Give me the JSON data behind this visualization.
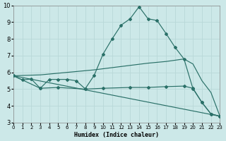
{
  "xlabel": "Humidex (Indice chaleur)",
  "bg_color": "#cce8e8",
  "line_color": "#2a7068",
  "grid_color": "#b8d8d8",
  "xlim": [
    0,
    23
  ],
  "ylim": [
    3,
    10
  ],
  "xticks": [
    0,
    1,
    2,
    3,
    4,
    5,
    6,
    7,
    8,
    9,
    10,
    11,
    12,
    13,
    14,
    15,
    16,
    17,
    18,
    19,
    20,
    21,
    22,
    23
  ],
  "yticks": [
    3,
    4,
    5,
    6,
    7,
    8,
    9,
    10
  ],
  "lines": [
    {
      "x": [
        0,
        1,
        2,
        3,
        4,
        5,
        6,
        7,
        8,
        9,
        10,
        11,
        12,
        13,
        14,
        15,
        16,
        17,
        18,
        19,
        20,
        21,
        22,
        23
      ],
      "y": [
        5.8,
        5.55,
        5.6,
        5.05,
        5.58,
        5.58,
        5.58,
        5.5,
        5.02,
        5.82,
        7.1,
        8.0,
        8.82,
        9.2,
        9.92,
        9.2,
        9.1,
        8.32,
        7.5,
        6.8,
        5.02,
        4.2,
        3.52,
        3.38
      ],
      "has_markers": true
    },
    {
      "x": [
        0,
        3,
        6,
        9,
        12,
        15,
        17,
        19,
        20,
        21,
        22,
        23
      ],
      "y": [
        5.8,
        5.85,
        6.0,
        6.15,
        6.35,
        6.55,
        6.65,
        6.8,
        6.5,
        5.5,
        4.8,
        3.38
      ],
      "has_markers": false
    },
    {
      "x": [
        0,
        3,
        5,
        8,
        10,
        13,
        15,
        17,
        19,
        20,
        21,
        22,
        23
      ],
      "y": [
        5.8,
        5.05,
        5.1,
        5.0,
        5.05,
        5.1,
        5.1,
        5.15,
        5.18,
        5.05,
        4.2,
        3.52,
        3.38
      ],
      "has_markers": true
    },
    {
      "x": [
        0,
        23
      ],
      "y": [
        5.8,
        3.38
      ],
      "has_markers": false
    }
  ],
  "marker": "D",
  "marker_size": 2.0,
  "linewidth": 0.85,
  "xlabel_fontsize": 6.0,
  "tick_fontsize_x": 5.0,
  "tick_fontsize_y": 6.0
}
